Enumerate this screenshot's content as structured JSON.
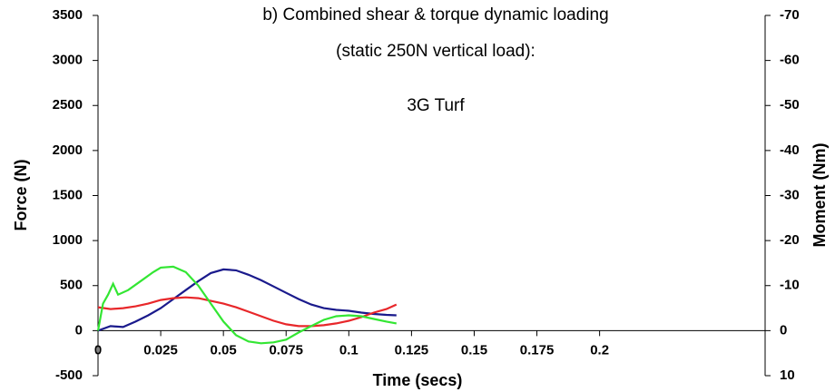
{
  "chart_data": {
    "type": "line",
    "title_lines": [
      "b) Combined shear & torque dynamic loading",
      "(static 250N vertical load):"
    ],
    "annotation": "3G Turf",
    "x_label": "Time (secs)",
    "y_label": "Force (N)",
    "y2_label": "Moment (Nm)",
    "xlim": [
      0,
      0.266
    ],
    "xticks": [
      0,
      0.025,
      0.05,
      0.075,
      0.1,
      0.125,
      0.15,
      0.175,
      0.2
    ],
    "ylim": [
      -500,
      3500
    ],
    "yticks": [
      -500,
      0,
      500,
      1000,
      1500,
      2000,
      2500,
      3000,
      3500
    ],
    "y2lim": [
      10,
      -70
    ],
    "y2ticks": [
      10,
      0,
      -10,
      -20,
      -30,
      -40,
      -50,
      -60,
      -70
    ],
    "series": [
      {
        "color": "#1a1a8c",
        "x": [
          0,
          0.005,
          0.01,
          0.015,
          0.02,
          0.025,
          0.03,
          0.035,
          0.04,
          0.045,
          0.05,
          0.055,
          0.06,
          0.065,
          0.07,
          0.075,
          0.08,
          0.085,
          0.09,
          0.095,
          0.1,
          0.105,
          0.11,
          0.115,
          0.119
        ],
        "values": [
          0,
          50,
          40,
          100,
          170,
          250,
          350,
          450,
          550,
          640,
          680,
          670,
          620,
          560,
          490,
          420,
          350,
          290,
          250,
          230,
          220,
          200,
          185,
          175,
          170
        ]
      },
      {
        "color": "#e8272a",
        "x": [
          0,
          0.005,
          0.01,
          0.015,
          0.02,
          0.025,
          0.03,
          0.035,
          0.04,
          0.045,
          0.05,
          0.055,
          0.06,
          0.065,
          0.07,
          0.075,
          0.08,
          0.085,
          0.09,
          0.095,
          0.1,
          0.105,
          0.11,
          0.115,
          0.119
        ],
        "values": [
          260,
          240,
          250,
          270,
          300,
          340,
          360,
          370,
          360,
          330,
          300,
          260,
          210,
          160,
          110,
          70,
          50,
          50,
          60,
          80,
          110,
          150,
          200,
          240,
          290
        ]
      },
      {
        "color": "#33e633",
        "axis": "y2",
        "x": [
          0,
          0.002,
          0.004,
          0.006,
          0.008,
          0.012,
          0.017,
          0.022,
          0.025,
          0.03,
          0.035,
          0.04,
          0.045,
          0.05,
          0.055,
          0.06,
          0.065,
          0.07,
          0.075,
          0.08,
          0.085,
          0.09,
          0.095,
          0.1,
          0.105,
          0.11,
          0.115,
          0.119
        ],
        "values": [
          0,
          -6,
          -8,
          -10.4,
          -8,
          -9,
          -11,
          -13,
          -14,
          -14.2,
          -13,
          -10,
          -6,
          -2,
          1,
          2.4,
          2.8,
          2.6,
          2,
          0.4,
          -1,
          -2.4,
          -3.2,
          -3.4,
          -3.2,
          -2.6,
          -2,
          -1.6
        ]
      }
    ]
  }
}
